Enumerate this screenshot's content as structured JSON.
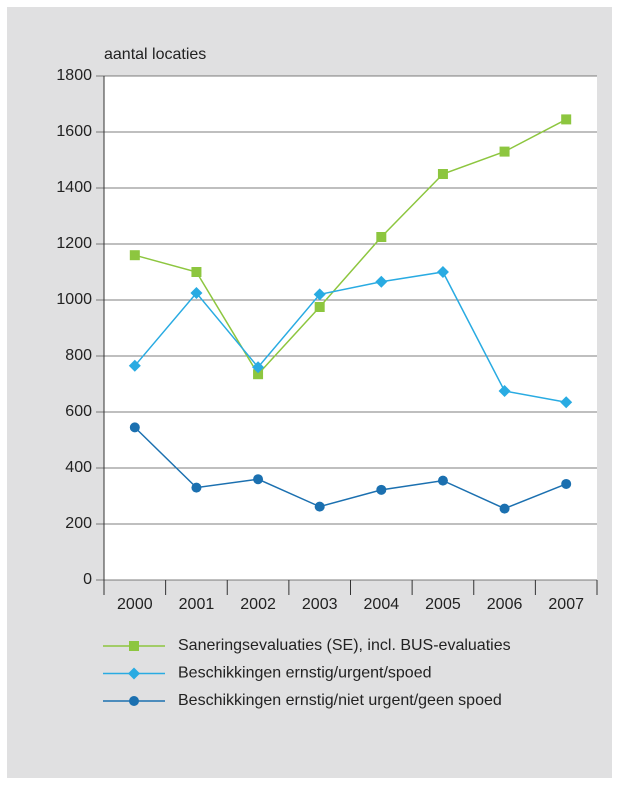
{
  "chart_data": {
    "type": "line",
    "y_axis_label": "aantal locaties",
    "categories": [
      "2000",
      "2001",
      "2002",
      "2003",
      "2004",
      "2005",
      "2006",
      "2007"
    ],
    "series": [
      {
        "name": "Saneringsevaluaties (SE),  incl. BUS-evaluaties",
        "color": "#8dc63f",
        "marker": "square",
        "values": [
          1160,
          1100,
          735,
          975,
          1225,
          1450,
          1530,
          1645
        ]
      },
      {
        "name": "Beschikkingen ernstig/urgent/spoed",
        "color": "#29abe2",
        "marker": "diamond",
        "values": [
          765,
          1025,
          760,
          1020,
          1065,
          1100,
          675,
          635
        ]
      },
      {
        "name": "Beschikkingen ernstig/niet urgent/geen spoed",
        "color": "#1b70b0",
        "marker": "circle",
        "values": [
          545,
          330,
          360,
          262,
          322,
          355,
          255,
          343
        ]
      }
    ],
    "ylim": [
      0,
      1800
    ],
    "yticks": [
      0,
      200,
      400,
      600,
      800,
      1000,
      1200,
      1400,
      1600,
      1800
    ],
    "grid": true
  }
}
